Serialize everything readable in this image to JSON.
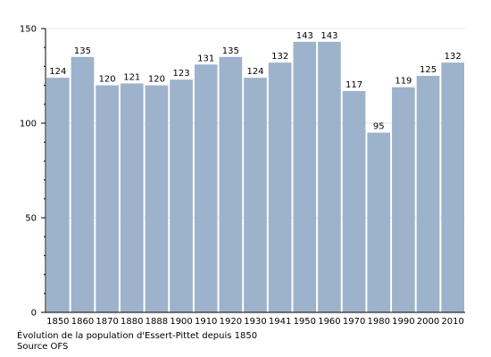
{
  "chart_data": {
    "type": "bar",
    "categories": [
      "1850",
      "1860",
      "1870",
      "1880",
      "1888",
      "1900",
      "1910",
      "1920",
      "1930",
      "1941",
      "1950",
      "1960",
      "1970",
      "1980",
      "1990",
      "2000",
      "2010"
    ],
    "values": [
      124,
      135,
      120,
      121,
      120,
      123,
      131,
      135,
      124,
      132,
      143,
      143,
      117,
      95,
      119,
      125,
      132
    ],
    "ylim": [
      0,
      150
    ],
    "yticks": [
      0,
      50,
      100,
      150
    ],
    "grid": true,
    "colors": {
      "bar": "#9db3cc",
      "grid": "#e6e6e6",
      "axis": "#000000"
    }
  },
  "caption": {
    "title": "Évolution de la population d'Essert-Pittet depuis 1850",
    "source": "Source OFS"
  }
}
